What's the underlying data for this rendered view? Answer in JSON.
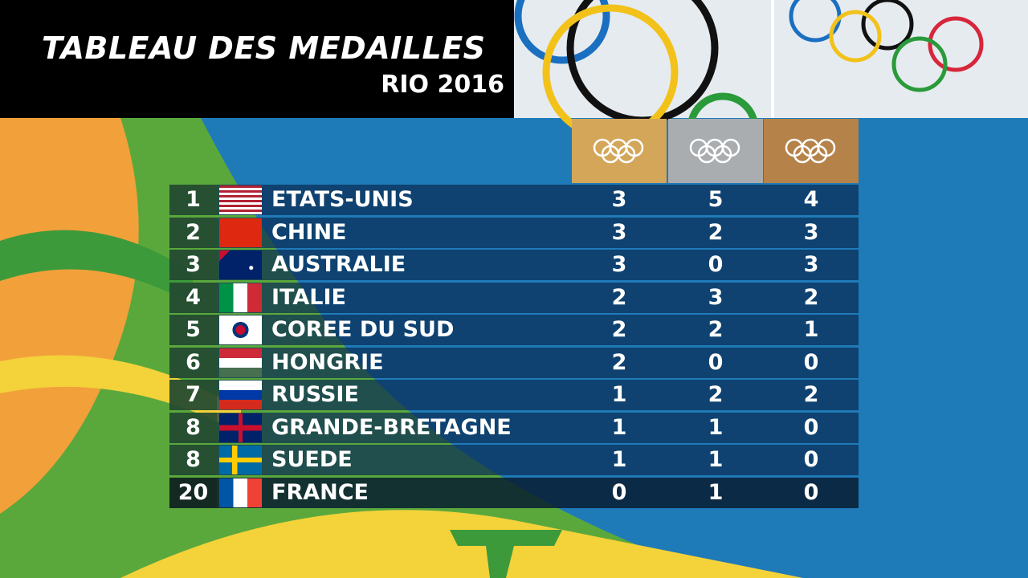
{
  "header": {
    "title": "TABLEAU DES MEDAILLES",
    "subtitle": "RIO 2016"
  },
  "table": {
    "rows": [
      [
        1,
        "ETATS-UNIS",
        3,
        5,
        4
      ],
      [
        2,
        "CHINE",
        3,
        2,
        3
      ],
      [
        3,
        "AUSTRALIE",
        3,
        0,
        3
      ],
      [
        4,
        "ITALIE",
        2,
        3,
        2
      ],
      [
        5,
        "COREE DU SUD",
        2,
        2,
        1
      ],
      [
        6,
        "HONGRIE",
        2,
        0,
        0
      ],
      [
        7,
        "RUSSIE",
        1,
        2,
        2
      ],
      [
        8,
        "GRANDE-BRETAGNE",
        1,
        1,
        0
      ],
      [
        8,
        "SUEDE",
        1,
        1,
        0
      ],
      [
        20,
        "FRANCE",
        0,
        1,
        0
      ]
    ]
  }
}
